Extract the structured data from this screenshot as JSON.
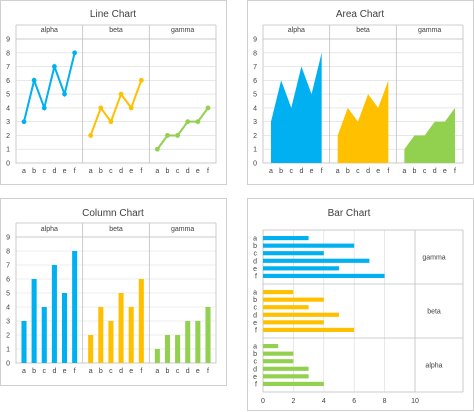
{
  "chart_data": [
    {
      "type": "line",
      "title": "Line Chart",
      "panels": [
        "alpha",
        "beta",
        "gamma"
      ],
      "categories": [
        "a",
        "b",
        "c",
        "d",
        "e",
        "f"
      ],
      "series": [
        {
          "name": "alpha",
          "color": "#00B0F0",
          "values": [
            3,
            6,
            4,
            7,
            5,
            8
          ]
        },
        {
          "name": "beta",
          "color": "#FFC000",
          "values": [
            2,
            4,
            3,
            5,
            4,
            6
          ]
        },
        {
          "name": "gamma",
          "color": "#92D050",
          "values": [
            1,
            2,
            2,
            3,
            3,
            4
          ]
        }
      ],
      "ylim": [
        0,
        9
      ],
      "yticks": [
        "0",
        "1",
        "2",
        "3",
        "4",
        "5",
        "6",
        "7",
        "8",
        "9"
      ],
      "grid": true
    },
    {
      "type": "area",
      "title": "Area Chart",
      "panels": [
        "alpha",
        "beta",
        "gamma"
      ],
      "categories": [
        "a",
        "b",
        "c",
        "d",
        "e",
        "f"
      ],
      "series": [
        {
          "name": "alpha",
          "color": "#00B0F0",
          "values": [
            3,
            6,
            4,
            7,
            5,
            8
          ]
        },
        {
          "name": "beta",
          "color": "#FFC000",
          "values": [
            2,
            4,
            3,
            5,
            4,
            6
          ]
        },
        {
          "name": "gamma",
          "color": "#92D050",
          "values": [
            1,
            2,
            2,
            3,
            3,
            4
          ]
        }
      ],
      "ylim": [
        0,
        9
      ],
      "yticks": [
        "0",
        "1",
        "2",
        "3",
        "4",
        "5",
        "6",
        "7",
        "8",
        "9"
      ],
      "grid": true
    },
    {
      "type": "bar",
      "title": "Column Chart",
      "panels": [
        "alpha",
        "beta",
        "gamma"
      ],
      "categories": [
        "a",
        "b",
        "c",
        "d",
        "e",
        "f"
      ],
      "series": [
        {
          "name": "alpha",
          "color": "#00B0F0",
          "values": [
            3,
            6,
            4,
            7,
            5,
            8
          ]
        },
        {
          "name": "beta",
          "color": "#FFC000",
          "values": [
            2,
            4,
            3,
            5,
            4,
            6
          ]
        },
        {
          "name": "gamma",
          "color": "#92D050",
          "values": [
            1,
            2,
            2,
            3,
            3,
            4
          ]
        }
      ],
      "ylim": [
        0,
        9
      ],
      "yticks": [
        "0",
        "1",
        "2",
        "3",
        "4",
        "5",
        "6",
        "7",
        "8",
        "9"
      ],
      "grid": true
    },
    {
      "type": "bar",
      "orientation": "horizontal",
      "title": "Bar Chart",
      "panels": [
        "gamma",
        "beta",
        "alpha"
      ],
      "categories": [
        "a",
        "b",
        "c",
        "d",
        "e",
        "f"
      ],
      "series": [
        {
          "name": "gamma",
          "color": "#00B0F0",
          "values": [
            3,
            6,
            4,
            7,
            5,
            8
          ]
        },
        {
          "name": "beta",
          "color": "#FFC000",
          "values": [
            2,
            4,
            3,
            5,
            4,
            6
          ]
        },
        {
          "name": "alpha",
          "color": "#92D050",
          "values": [
            1,
            2,
            2,
            3,
            3,
            4
          ]
        }
      ],
      "xlim": [
        0,
        10
      ],
      "xticks": [
        "0",
        "2",
        "4",
        "6",
        "8",
        "10"
      ],
      "grid": true
    }
  ]
}
